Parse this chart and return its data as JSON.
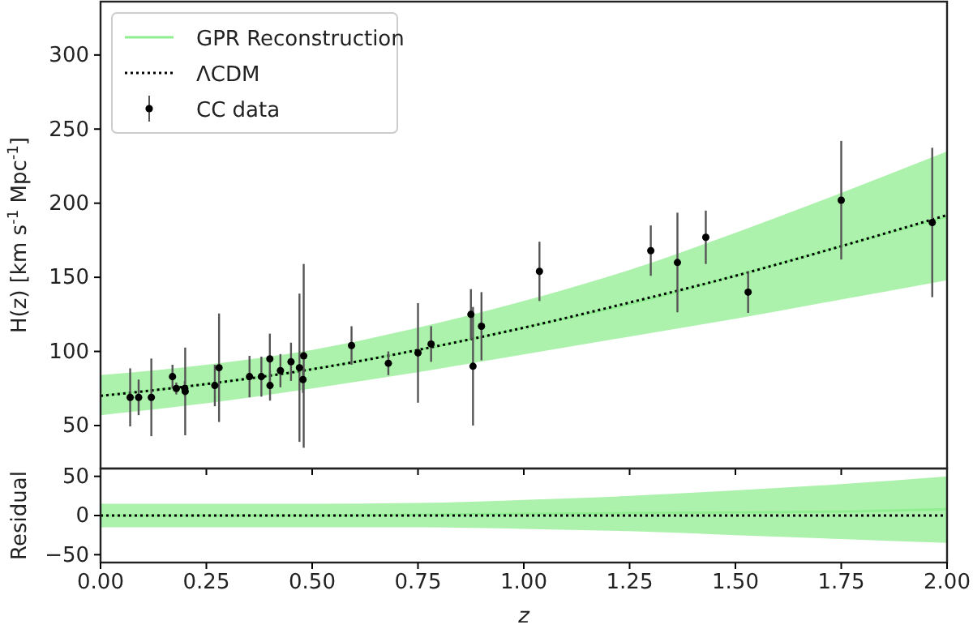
{
  "chart_data": [
    {
      "type": "line",
      "ylabel": "H(z) [km s$^{-1}$ Mpc$^{-1}$]",
      "xlim": [
        0,
        2
      ],
      "xticks": [
        0,
        0.25,
        0.5,
        0.75,
        1,
        1.25,
        1.5,
        1.75,
        2
      ],
      "ylim": [
        21,
        336
      ],
      "yticks": [
        50,
        100,
        150,
        200,
        250,
        300
      ],
      "tick_labels": "y",
      "grid": false,
      "legend": "top left",
      "series": [
        {
          "name": "GPR Reconstruction",
          "color": "#90ee90",
          "line_style": "solid",
          "x": [
            0,
            0.25,
            0.5,
            0.75,
            1,
            1.25,
            1.5,
            1.75,
            2
          ],
          "values": [
            70,
            78,
            88,
            101,
            116,
            132,
            151,
            171,
            191
          ],
          "lower": [
            57,
            65,
            75,
            86,
            98,
            110,
            122,
            135,
            148
          ],
          "upper": [
            84,
            91,
            101,
            116,
            134,
            155,
            180,
            207,
            235
          ]
        },
        {
          "name": "ΛCDM",
          "color": "#000000",
          "line_style": "dotted",
          "x": [
            0,
            0.25,
            0.5,
            0.75,
            1,
            1.25,
            1.5,
            1.75,
            2
          ],
          "values": [
            70,
            78,
            88,
            101,
            116,
            133,
            151,
            171,
            192
          ]
        },
        {
          "name": "CC data",
          "type": "scatter",
          "color": "#000000",
          "marker": "circle",
          "x": [
            0.07,
            0.09,
            0.12,
            0.17,
            0.179,
            0.199,
            0.2,
            0.27,
            0.28,
            0.352,
            0.38,
            0.4,
            0.4004,
            0.425,
            0.45,
            0.47,
            0.4783,
            0.48,
            0.593,
            0.68,
            0.75,
            0.781,
            0.875,
            0.88,
            0.9,
            1.037,
            1.3,
            1.363,
            1.43,
            1.53,
            1.75,
            1.965
          ],
          "values": [
            69,
            69,
            69,
            83,
            75,
            75,
            73,
            77,
            89,
            83,
            83,
            95,
            77,
            87,
            93,
            89,
            81,
            97,
            104,
            92,
            99,
            105,
            125,
            90,
            117,
            154,
            168,
            160,
            177,
            140,
            202,
            187
          ],
          "errors": [
            19.6,
            12,
            26.2,
            8,
            4,
            5,
            29.6,
            14,
            36.6,
            14,
            13.5,
            17,
            10.2,
            11.2,
            12.9,
            50,
            9,
            62,
            13,
            8,
            33.6,
            12,
            17,
            40,
            23,
            20,
            17,
            33.6,
            18,
            14,
            40,
            50.4
          ]
        }
      ]
    },
    {
      "type": "line",
      "xlabel": "z",
      "ylabel": "Residual",
      "xlim": [
        0,
        2
      ],
      "xticks": [
        {
          "value": 0,
          "label": "0.00"
        },
        {
          "value": 0.25,
          "label": "0.25"
        },
        {
          "value": 0.5,
          "label": "0.50"
        },
        {
          "value": 0.75,
          "label": "0.75"
        },
        {
          "value": 1,
          "label": "1.00"
        },
        {
          "value": 1.25,
          "label": "1.25"
        },
        {
          "value": 1.5,
          "label": "1.50"
        },
        {
          "value": 1.75,
          "label": "1.75"
        },
        {
          "value": 2,
          "label": "2.00"
        }
      ],
      "ylim": [
        -60,
        60
      ],
      "yticks": [
        -50,
        0,
        50
      ],
      "grid": false,
      "series": [
        {
          "color": "#90ee90",
          "line_style": "solid",
          "x": [
            0,
            0.25,
            0.5,
            0.75,
            1,
            1.25,
            1.5,
            1.75,
            2
          ],
          "values": [
            0,
            0,
            0,
            1,
            2,
            3,
            4,
            5,
            8
          ],
          "lower": [
            -15,
            -15,
            -15,
            -15,
            -17,
            -20,
            -25,
            -30,
            -35
          ],
          "upper": [
            15,
            15,
            15,
            16,
            20,
            25,
            32,
            40,
            50
          ]
        },
        {
          "color": "#000000",
          "line_style": "dotted",
          "x": [
            0,
            2
          ],
          "values": [
            0,
            0
          ]
        }
      ]
    }
  ]
}
